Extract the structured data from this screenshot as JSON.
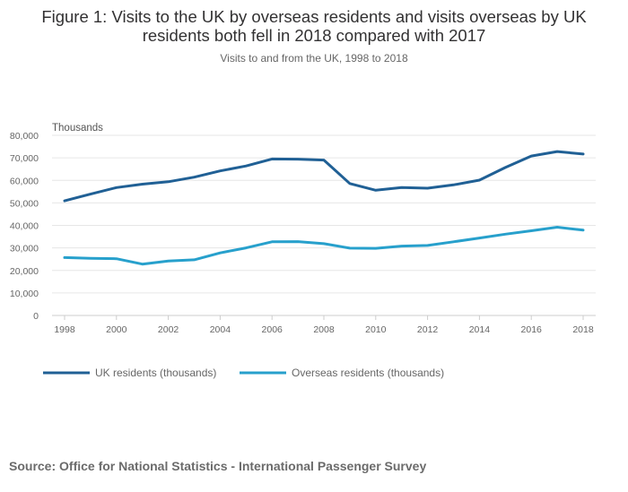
{
  "chart_data": {
    "type": "line",
    "title": "Figure 1: Visits to the UK by overseas residents and visits overseas by UK residents both fell in 2018 compared with 2017",
    "subtitle": "Visits to and from the UK, 1998 to 2018",
    "ylabel": "Thousands",
    "xlabel": "",
    "ylim": [
      0,
      80000
    ],
    "y_ticks": [
      0,
      10000,
      20000,
      30000,
      40000,
      50000,
      60000,
      70000,
      80000
    ],
    "y_tick_labels": [
      "0",
      "10,000",
      "20,000",
      "30,000",
      "40,000",
      "50,000",
      "60,000",
      "70,000",
      "80,000"
    ],
    "x_ticks": [
      1998,
      2000,
      2002,
      2004,
      2006,
      2008,
      2010,
      2012,
      2014,
      2016,
      2018
    ],
    "x_tick_labels": [
      "1998",
      "2000",
      "2002",
      "2004",
      "2006",
      "2008",
      "2010",
      "2012",
      "2014",
      "2016",
      "2018"
    ],
    "x": [
      1998,
      1999,
      2000,
      2001,
      2002,
      2003,
      2004,
      2005,
      2006,
      2007,
      2008,
      2009,
      2010,
      2011,
      2012,
      2013,
      2014,
      2015,
      2016,
      2017,
      2018
    ],
    "grid": true,
    "legend_position": "bottom-left",
    "series": [
      {
        "name": "UK residents (thousands)",
        "color": "#206095",
        "values": [
          50900,
          53900,
          56800,
          58300,
          59400,
          61400,
          64200,
          66400,
          69500,
          69400,
          69000,
          58600,
          55600,
          56800,
          56500,
          58000,
          60100,
          65700,
          70800,
          72800,
          71700
        ]
      },
      {
        "name": "Overseas residents (thousands)",
        "color": "#27a0cc",
        "values": [
          25700,
          25400,
          25200,
          22800,
          24200,
          24700,
          27800,
          30000,
          32700,
          32800,
          31900,
          29900,
          29800,
          30800,
          31100,
          32700,
          34400,
          36100,
          37600,
          39200,
          37900
        ]
      }
    ]
  },
  "source": "Source: Office for National Statistics - International Passenger Survey"
}
